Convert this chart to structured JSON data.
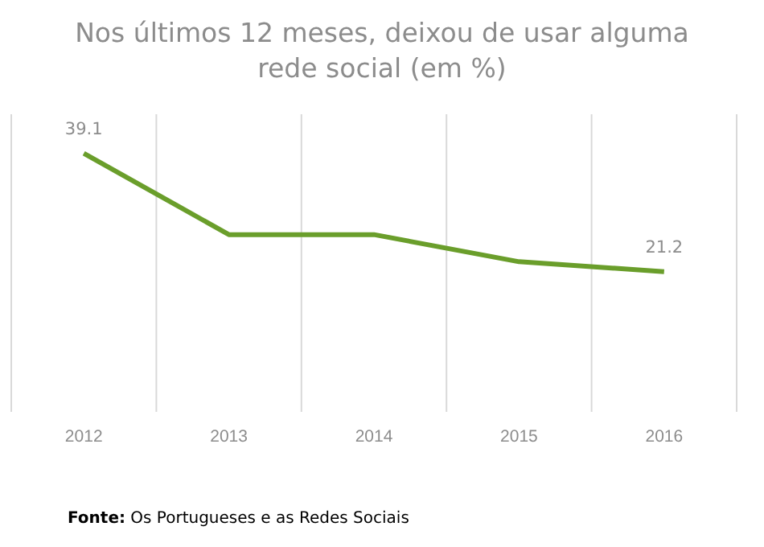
{
  "chart_data": {
    "type": "line",
    "title": "Nos últimos 12 meses, deixou de usar alguma rede social (em %)",
    "categories": [
      "2012",
      "2013",
      "2014",
      "2015",
      "2016"
    ],
    "series": [
      {
        "color": "#6a9e2b",
        "values": [
          39.1,
          26.8,
          26.8,
          22.7,
          21.2
        ],
        "value_labels": [
          "39.1",
          null,
          null,
          null,
          "21.2"
        ]
      }
    ],
    "ylim": [
      0,
      45
    ],
    "grid": "x",
    "marker": "none",
    "line_style": "solid",
    "tick_labels": "x",
    "annotations": [
      "Fonte: Os Portugueses e as Redes Sociais"
    ]
  }
}
